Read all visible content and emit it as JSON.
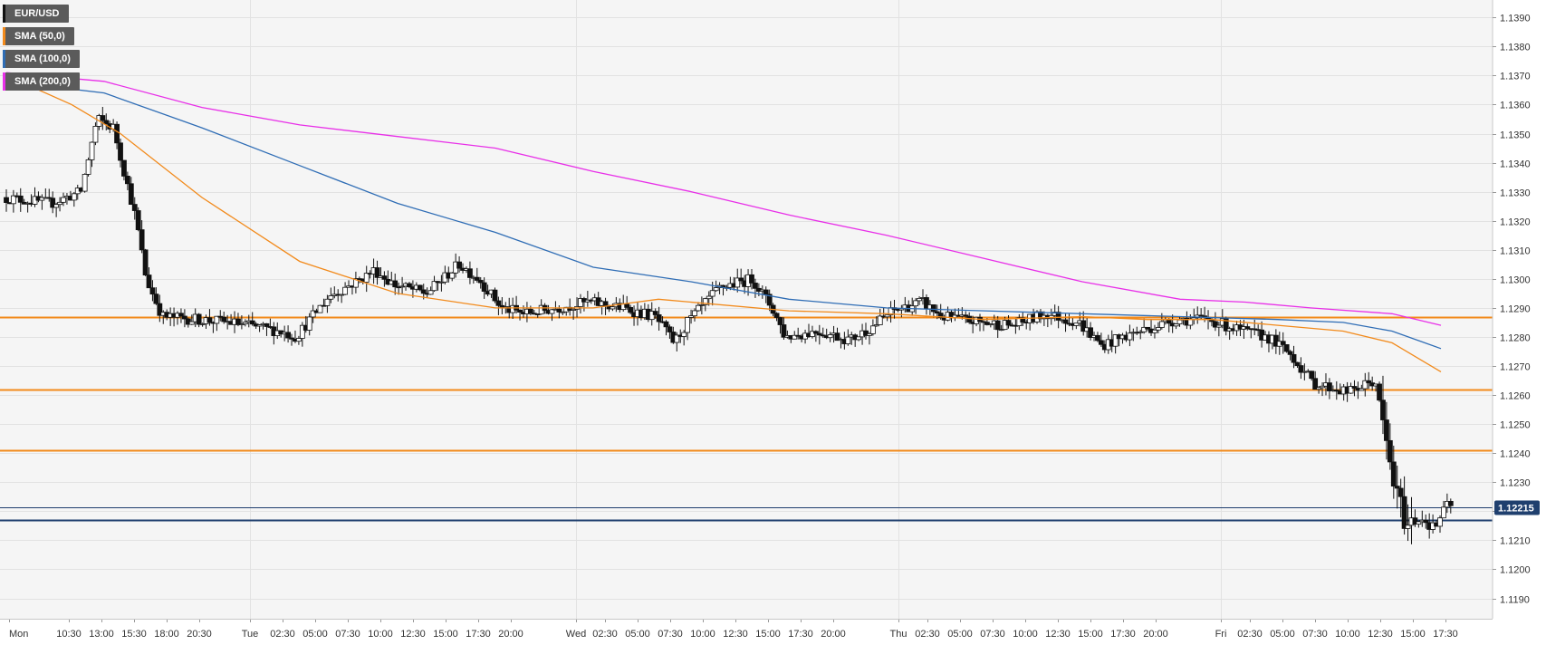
{
  "legend": {
    "items": [
      {
        "label": "EUR/USD",
        "color": "#111111"
      },
      {
        "label": "SMA (50,0)",
        "color": "#f28a1b"
      },
      {
        "label": "SMA (100,0)",
        "color": "#2f6db5"
      },
      {
        "label": "SMA (200,0)",
        "color": "#e830e8"
      }
    ]
  },
  "colors": {
    "background": "#f5f5f5",
    "grid": "#e2e2e2",
    "bull_body": "#ffffff",
    "bear_body": "#111111",
    "wick": "#111111",
    "sma50": "#f28a1b",
    "sma100": "#2f6db5",
    "sma200": "#e830e8",
    "resistance_lines": "#f28a1b",
    "support_line": "#1f3f6e",
    "last_price_line": "#1f3f6e",
    "price_tag_bg": "#1f3f6e"
  },
  "chart_data": {
    "type": "candlestick",
    "symbol": "EUR/USD",
    "ylim": [
      1.1183,
      1.1396
    ],
    "y_ticks": [
      "1.1190",
      "1.1200",
      "1.1210",
      "1.1220",
      "1.1230",
      "1.1240",
      "1.1250",
      "1.1260",
      "1.1270",
      "1.1280",
      "1.1290",
      "1.1300",
      "1.1310",
      "1.1320",
      "1.1330",
      "1.1340",
      "1.1350",
      "1.1360",
      "1.1370",
      "1.1380",
      "1.1390"
    ],
    "x_tick_labels": [
      "Mon",
      "10:30",
      "13:00",
      "15:30",
      "18:00",
      "20:30",
      "Tue",
      "02:30",
      "05:00",
      "07:30",
      "10:00",
      "12:30",
      "15:00",
      "17:30",
      "20:00",
      "Wed",
      "02:30",
      "05:00",
      "07:30",
      "10:00",
      "12:30",
      "15:00",
      "17:30",
      "20:00",
      "Thu",
      "02:30",
      "05:00",
      "07:30",
      "10:00",
      "12:30",
      "15:00",
      "17:30",
      "20:00",
      "Fri",
      "02:30",
      "05:00",
      "07:30",
      "10:00",
      "12:30",
      "15:00",
      "17:30"
    ],
    "day_separators": [
      "Tue",
      "Wed",
      "Thu",
      "Fri"
    ],
    "last_price": "1.12215",
    "last_price_value": 1.12215,
    "horizontal_levels": {
      "resistance": [
        1.1287,
        1.1262,
        1.1241
      ],
      "support": [
        1.1217
      ]
    },
    "candle_anchors": [
      {
        "t": 0,
        "p": 1.1328
      },
      {
        "t": 1.5,
        "p": 1.1326
      },
      {
        "t": 2.4,
        "p": 1.133
      },
      {
        "t": 2.9,
        "p": 1.1355
      },
      {
        "t": 3.4,
        "p": 1.1352
      },
      {
        "t": 3.7,
        "p": 1.1338
      },
      {
        "t": 4.1,
        "p": 1.132
      },
      {
        "t": 4.4,
        "p": 1.13
      },
      {
        "t": 4.9,
        "p": 1.1287
      },
      {
        "t": 6.0,
        "p": 1.1286
      },
      {
        "t": 7.0,
        "p": 1.1285
      },
      {
        "t": 8.5,
        "p": 1.1282
      },
      {
        "t": 9.0,
        "p": 1.128
      },
      {
        "t": 10.0,
        "p": 1.1294
      },
      {
        "t": 11.0,
        "p": 1.13
      },
      {
        "t": 11.4,
        "p": 1.1303
      },
      {
        "t": 12.0,
        "p": 1.1298
      },
      {
        "t": 13.0,
        "p": 1.1295
      },
      {
        "t": 14.0,
        "p": 1.1305
      },
      {
        "t": 14.6,
        "p": 1.13
      },
      {
        "t": 15.3,
        "p": 1.129
      },
      {
        "t": 16.0,
        "p": 1.1288
      },
      {
        "t": 17.0,
        "p": 1.129
      },
      {
        "t": 18.0,
        "p": 1.1292
      },
      {
        "t": 19.0,
        "p": 1.129
      },
      {
        "t": 20.0,
        "p": 1.1287
      },
      {
        "t": 20.6,
        "p": 1.1278
      },
      {
        "t": 21.0,
        "p": 1.1285
      },
      {
        "t": 22.0,
        "p": 1.1297
      },
      {
        "t": 23.0,
        "p": 1.13
      },
      {
        "t": 23.6,
        "p": 1.129
      },
      {
        "t": 24.0,
        "p": 1.128
      },
      {
        "t": 25.0,
        "p": 1.1282
      },
      {
        "t": 26.0,
        "p": 1.1279
      },
      {
        "t": 26.6,
        "p": 1.1283
      },
      {
        "t": 27.3,
        "p": 1.1289
      },
      {
        "t": 28.2,
        "p": 1.1292
      },
      {
        "t": 28.8,
        "p": 1.1287
      },
      {
        "t": 30.0,
        "p": 1.1285
      },
      {
        "t": 31.0,
        "p": 1.1284
      },
      {
        "t": 32.0,
        "p": 1.1288
      },
      {
        "t": 33.0,
        "p": 1.1285
      },
      {
        "t": 33.7,
        "p": 1.1277
      },
      {
        "t": 34.6,
        "p": 1.1281
      },
      {
        "t": 36.0,
        "p": 1.1286
      },
      {
        "t": 37.0,
        "p": 1.1286
      },
      {
        "t": 38.0,
        "p": 1.1282
      },
      {
        "t": 38.8,
        "p": 1.128
      },
      {
        "t": 39.5,
        "p": 1.1274
      },
      {
        "t": 40.2,
        "p": 1.1264
      },
      {
        "t": 41.3,
        "p": 1.1261
      },
      {
        "t": 42.1,
        "p": 1.1265
      },
      {
        "t": 42.4,
        "p": 1.1245
      },
      {
        "t": 42.75,
        "p": 1.1225
      },
      {
        "t": 43.1,
        "p": 1.1215
      },
      {
        "t": 43.5,
        "p": 1.1218
      },
      {
        "t": 43.9,
        "p": 1.1214
      },
      {
        "t": 44.3,
        "p": 1.1222
      }
    ],
    "series": [
      {
        "name": "SMA (50,0)",
        "points": [
          {
            "t": 0,
            "p": 1.137
          },
          {
            "t": 2,
            "p": 1.136
          },
          {
            "t": 3.5,
            "p": 1.135
          },
          {
            "t": 6,
            "p": 1.1328
          },
          {
            "t": 9,
            "p": 1.1306
          },
          {
            "t": 12,
            "p": 1.1295
          },
          {
            "t": 15,
            "p": 1.129
          },
          {
            "t": 18,
            "p": 1.129
          },
          {
            "t": 20,
            "p": 1.1293
          },
          {
            "t": 24,
            "p": 1.1289
          },
          {
            "t": 27,
            "p": 1.1288
          },
          {
            "t": 30,
            "p": 1.1286
          },
          {
            "t": 33,
            "p": 1.1287
          },
          {
            "t": 35,
            "p": 1.1286
          },
          {
            "t": 37,
            "p": 1.1286
          },
          {
            "t": 39,
            "p": 1.1284
          },
          {
            "t": 41,
            "p": 1.1282
          },
          {
            "t": 42.5,
            "p": 1.1278
          },
          {
            "t": 44,
            "p": 1.1268
          }
        ]
      },
      {
        "name": "SMA (100,0)",
        "points": [
          {
            "t": 0,
            "p": 1.1368
          },
          {
            "t": 3,
            "p": 1.1364
          },
          {
            "t": 6,
            "p": 1.1352
          },
          {
            "t": 9,
            "p": 1.1339
          },
          {
            "t": 12,
            "p": 1.1326
          },
          {
            "t": 15,
            "p": 1.1316
          },
          {
            "t": 18,
            "p": 1.1304
          },
          {
            "t": 21,
            "p": 1.1299
          },
          {
            "t": 24,
            "p": 1.1293
          },
          {
            "t": 27,
            "p": 1.129
          },
          {
            "t": 30,
            "p": 1.1289
          },
          {
            "t": 33,
            "p": 1.1288
          },
          {
            "t": 36,
            "p": 1.1287
          },
          {
            "t": 39,
            "p": 1.1286
          },
          {
            "t": 41,
            "p": 1.1285
          },
          {
            "t": 42.5,
            "p": 1.1282
          },
          {
            "t": 44,
            "p": 1.1276
          }
        ]
      },
      {
        "name": "SMA (200,0)",
        "points": [
          {
            "t": 0,
            "p": 1.1371
          },
          {
            "t": 3,
            "p": 1.1368
          },
          {
            "t": 6,
            "p": 1.1359
          },
          {
            "t": 9,
            "p": 1.1353
          },
          {
            "t": 12,
            "p": 1.1349
          },
          {
            "t": 15,
            "p": 1.1345
          },
          {
            "t": 18,
            "p": 1.1337
          },
          {
            "t": 21,
            "p": 1.133
          },
          {
            "t": 24,
            "p": 1.1322
          },
          {
            "t": 27,
            "p": 1.1315
          },
          {
            "t": 30,
            "p": 1.1307
          },
          {
            "t": 33,
            "p": 1.1299
          },
          {
            "t": 36,
            "p": 1.1293
          },
          {
            "t": 38,
            "p": 1.1292
          },
          {
            "t": 40,
            "p": 1.129
          },
          {
            "t": 42.5,
            "p": 1.1288
          },
          {
            "t": 44,
            "p": 1.1284
          }
        ]
      }
    ]
  }
}
